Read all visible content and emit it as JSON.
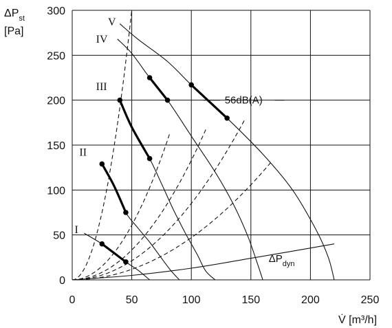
{
  "chart_data": {
    "type": "line",
    "xlabel": "V̇ [m³/h]",
    "ylabel_line1": "ΔPst",
    "ylabel_line2": "[Pa]",
    "xlim": [
      0,
      250
    ],
    "ylim": [
      0,
      300
    ],
    "x_ticks": [
      0,
      50,
      100,
      150,
      200,
      250
    ],
    "y_ticks": [
      0,
      50,
      100,
      150,
      200,
      250,
      300
    ],
    "grid": true,
    "fan_curves": [
      {
        "name": "I",
        "points": [
          [
            10,
            52
          ],
          [
            25,
            40
          ],
          [
            36,
            30
          ],
          [
            45,
            20
          ],
          [
            55,
            11
          ],
          [
            65,
            0
          ]
        ]
      },
      {
        "name": "II",
        "points": [
          [
            25,
            129
          ],
          [
            35,
            105
          ],
          [
            45,
            75
          ],
          [
            55,
            58
          ],
          [
            65,
            42
          ],
          [
            75,
            24
          ],
          [
            83,
            10
          ],
          [
            90,
            0
          ]
        ]
      },
      {
        "name": "III",
        "points": [
          [
            40,
            200
          ],
          [
            50,
            170
          ],
          [
            65,
            135
          ],
          [
            75,
            107
          ],
          [
            85,
            78
          ],
          [
            95,
            52
          ],
          [
            105,
            28
          ],
          [
            112,
            10
          ],
          [
            120,
            0
          ]
        ]
      },
      {
        "name": "IV",
        "points": [
          [
            38,
            268
          ],
          [
            50,
            252
          ],
          [
            65,
            225
          ],
          [
            80,
            200
          ],
          [
            100,
            160
          ],
          [
            120,
            120
          ],
          [
            135,
            85
          ],
          [
            147,
            50
          ],
          [
            155,
            20
          ],
          [
            160,
            0
          ]
        ]
      },
      {
        "name": "V",
        "points": [
          [
            40,
            285
          ],
          [
            55,
            268
          ],
          [
            80,
            243
          ],
          [
            100,
            217
          ],
          [
            130,
            180
          ],
          [
            160,
            140
          ],
          [
            185,
            100
          ],
          [
            205,
            55
          ],
          [
            215,
            25
          ],
          [
            220,
            0
          ]
        ]
      }
    ],
    "operating_segments": [
      {
        "curve": "I",
        "points": [
          [
            25,
            40
          ],
          [
            45,
            20
          ]
        ]
      },
      {
        "curve": "II",
        "points": [
          [
            25,
            129
          ],
          [
            35,
            105
          ],
          [
            45,
            75
          ]
        ]
      },
      {
        "curve": "III",
        "points": [
          [
            40,
            200
          ],
          [
            50,
            170
          ],
          [
            65,
            135
          ]
        ]
      },
      {
        "curve": "IV",
        "points": [
          [
            65,
            225
          ],
          [
            80,
            200
          ]
        ]
      },
      {
        "curve": "V",
        "points": [
          [
            100,
            217
          ],
          [
            130,
            180
          ]
        ]
      }
    ],
    "system_curves_k": [
      0.12,
      0.0243,
      0.0133,
      0.0085,
      0.0047
    ],
    "system_curve_xmax": [
      50,
      82,
      113,
      145,
      168
    ],
    "dynamic_pressure_curve": {
      "name": "ΔPdyn",
      "points": [
        [
          0,
          0
        ],
        [
          50,
          5
        ],
        [
          100,
          13
        ],
        [
          150,
          24
        ],
        [
          220,
          40
        ]
      ]
    },
    "annotations": {
      "noise_label": "56dB(A)",
      "dyn_label_main": "ΔP",
      "dyn_label_sub": "dyn"
    }
  }
}
